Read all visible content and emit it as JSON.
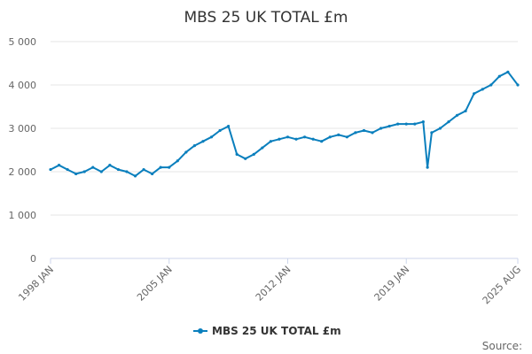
{
  "chart_data": {
    "type": "line",
    "title": "MBS 25 UK TOTAL £m",
    "xlabel": "",
    "ylabel": "",
    "x_range": [
      "1998-01",
      "2025-08"
    ],
    "x_tick_labels": [
      "1998 JAN",
      "2005 JAN",
      "2012 JAN",
      "2019 JAN",
      "2025 AUG"
    ],
    "x_tick_dates": [
      "1998-01",
      "2005-01",
      "2012-01",
      "2019-01",
      "2025-08"
    ],
    "ylim": [
      0,
      5000
    ],
    "y_ticks": [
      0,
      1000,
      2000,
      3000,
      4000,
      5000
    ],
    "y_tick_labels": [
      "0",
      "1 000",
      "2 000",
      "3 000",
      "4 000",
      "5 000"
    ],
    "grid": true,
    "legend_position": "bottom-center",
    "color": "#0a7fbd",
    "source_label": "Source:",
    "series": [
      {
        "name": "MBS 25 UK TOTAL £m",
        "x": [
          "1998-01",
          "1998-07",
          "1999-01",
          "1999-07",
          "2000-01",
          "2000-07",
          "2001-01",
          "2001-07",
          "2002-01",
          "2002-07",
          "2003-01",
          "2003-07",
          "2004-01",
          "2004-07",
          "2005-01",
          "2005-07",
          "2006-01",
          "2006-07",
          "2007-01",
          "2007-07",
          "2008-01",
          "2008-07",
          "2009-01",
          "2009-07",
          "2010-01",
          "2010-07",
          "2011-01",
          "2011-07",
          "2012-01",
          "2012-07",
          "2013-01",
          "2013-07",
          "2014-01",
          "2014-07",
          "2015-01",
          "2015-07",
          "2016-01",
          "2016-07",
          "2017-01",
          "2017-07",
          "2018-01",
          "2018-07",
          "2019-01",
          "2019-07",
          "2020-01",
          "2020-04",
          "2020-07",
          "2021-01",
          "2021-07",
          "2022-01",
          "2022-07",
          "2023-01",
          "2023-07",
          "2024-01",
          "2024-07",
          "2025-01",
          "2025-08"
        ],
        "values": [
          2050,
          2150,
          2050,
          1950,
          2000,
          2100,
          2000,
          2150,
          2050,
          2000,
          1900,
          2050,
          1950,
          2100,
          2100,
          2250,
          2450,
          2600,
          2700,
          2800,
          2950,
          3050,
          2400,
          2300,
          2400,
          2550,
          2700,
          2750,
          2800,
          2750,
          2800,
          2750,
          2700,
          2800,
          2850,
          2800,
          2900,
          2950,
          2900,
          3000,
          3050,
          3100,
          3100,
          3100,
          3150,
          2100,
          2900,
          3000,
          3150,
          3300,
          3400,
          3800,
          3900,
          4000,
          4200,
          4300,
          4000
        ]
      }
    ]
  }
}
